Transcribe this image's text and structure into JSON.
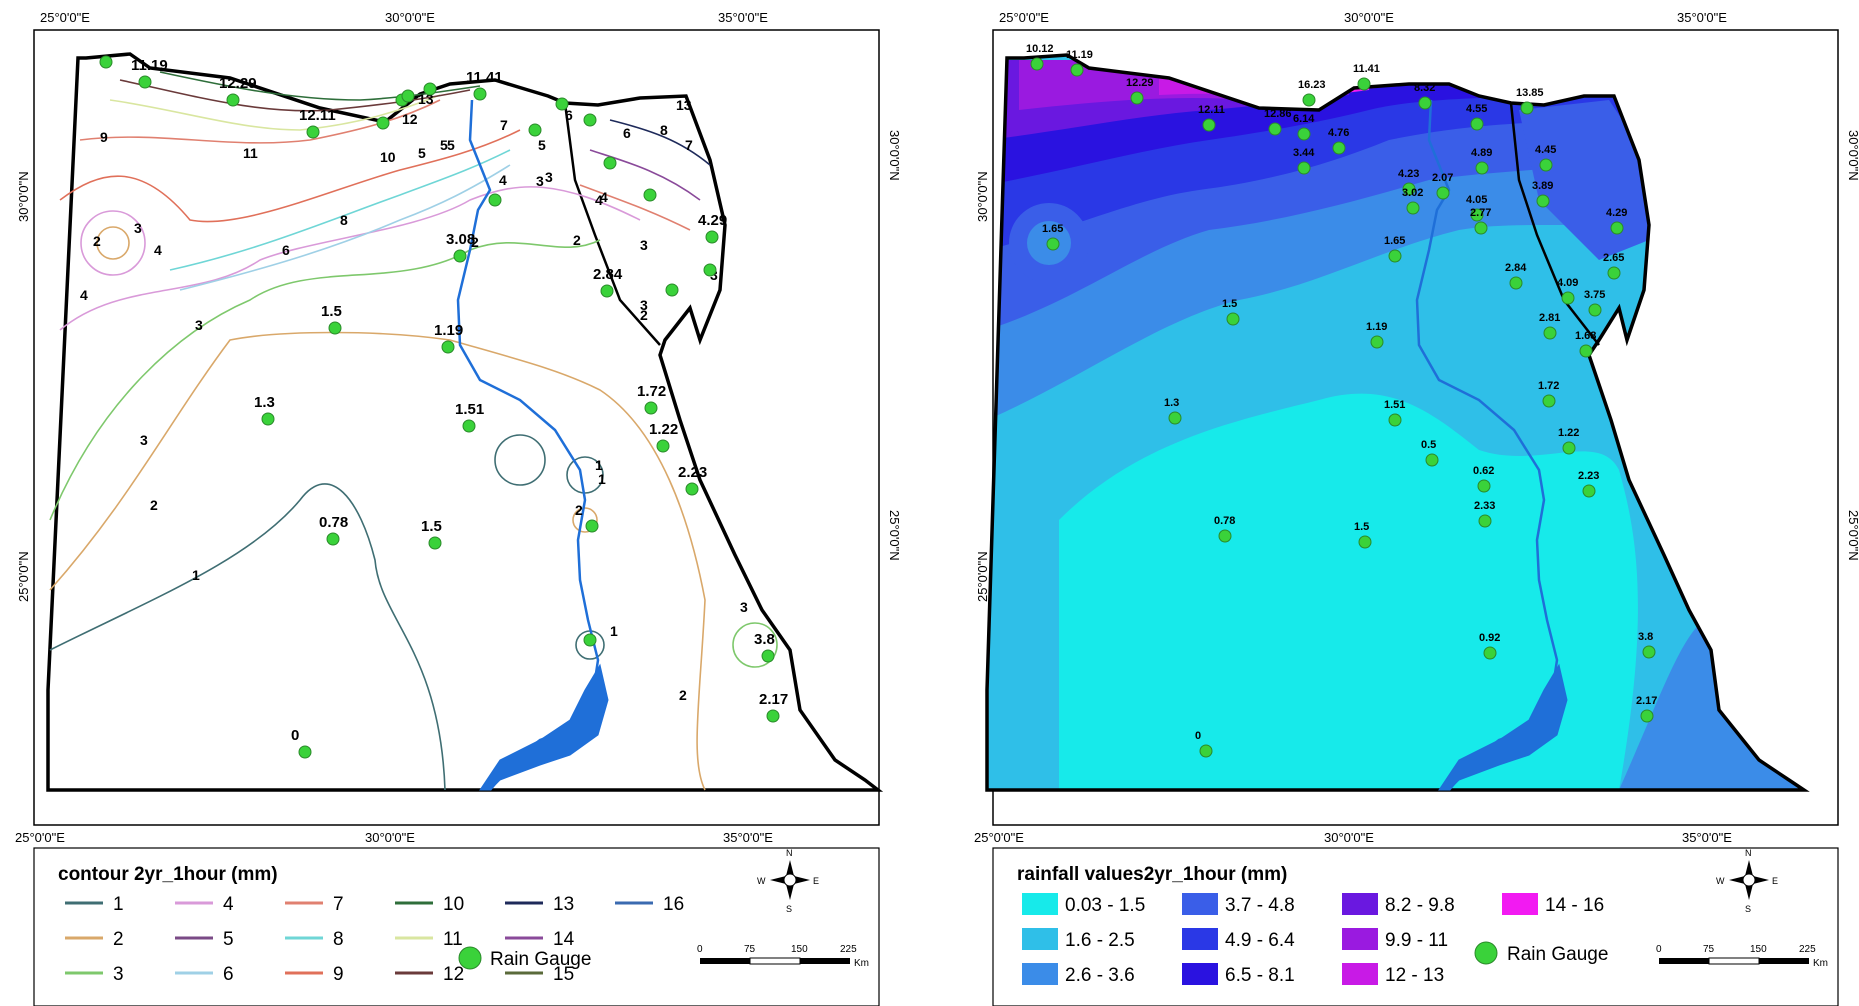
{
  "coords": {
    "lon_labels": [
      "25°0'0\"E",
      "30°0'0\"E",
      "35°0'0\"E"
    ],
    "lat_labels": [
      "30°0'0\"N",
      "25°0'0\"N"
    ]
  },
  "left_map": {
    "legend_title": "contour 2yr_1hour (mm)",
    "contour_items": [
      {
        "label": "1",
        "color": "#3f6e73"
      },
      {
        "label": "2",
        "color": "#d9a86a"
      },
      {
        "label": "3",
        "color": "#7ec86c"
      },
      {
        "label": "4",
        "color": "#d99ad9"
      },
      {
        "label": "5",
        "color": "#7a4a86"
      },
      {
        "label": "6",
        "color": "#9fd0e6"
      },
      {
        "label": "7",
        "color": "#e08070"
      },
      {
        "label": "8",
        "color": "#6fd6d6"
      },
      {
        "label": "9",
        "color": "#e0705a"
      },
      {
        "label": "10",
        "color": "#2e6e3a"
      },
      {
        "label": "11",
        "color": "#d9e6a0"
      },
      {
        "label": "12",
        "color": "#6a3a3a"
      },
      {
        "label": "13",
        "color": "#1e2a5a"
      },
      {
        "label": "14",
        "color": "#8a4a9a"
      },
      {
        "label": "15",
        "color": "#5a6a3a"
      },
      {
        "label": "16",
        "color": "#3a6ab0"
      }
    ],
    "gauge_legend": "Rain Gauge",
    "contour_labels": [
      "9",
      "11",
      "10",
      "12",
      "13",
      "5",
      "5",
      "7",
      "5",
      "6",
      "6",
      "8",
      "7",
      "13",
      "4",
      "3",
      "8",
      "6",
      "4",
      "2",
      "3",
      "4",
      "4",
      "3",
      "2",
      "1",
      "1",
      "1",
      "2",
      "2",
      "2",
      "3",
      "2",
      "5",
      "3",
      "3",
      "3",
      "1",
      "3",
      "4",
      "3",
      "2"
    ],
    "gauge_labels": [
      "11.19",
      "12.29",
      "12.11",
      "11.41",
      "3.08",
      "1.5",
      "1.19",
      "2.84",
      "4.29",
      "1.72",
      "1.22",
      "1.3",
      "1.51",
      "2.23",
      "0.78",
      "1.5",
      "3.8",
      "2.17",
      "0"
    ]
  },
  "right_map": {
    "legend_title": "rainfall values2yr_1hour (mm)",
    "class_items": [
      {
        "label": "0.03 - 1.5",
        "color": "#17eaea"
      },
      {
        "label": "1.6 - 2.5",
        "color": "#2fbfe8"
      },
      {
        "label": "2.6 - 3.6",
        "color": "#3b8ce8"
      },
      {
        "label": "3.7 - 4.8",
        "color": "#3a5ee8"
      },
      {
        "label": "4.9 - 6.4",
        "color": "#2a38e6"
      },
      {
        "label": "6.5 - 8.1",
        "color": "#2a12e0"
      },
      {
        "label": "8.2 - 9.8",
        "color": "#6a18e0"
      },
      {
        "label": "9.9 - 11",
        "color": "#9a1ae0"
      },
      {
        "label": "12 - 13",
        "color": "#c81ae6"
      },
      {
        "label": "14 - 16",
        "color": "#f21af2"
      }
    ],
    "gauge_legend": "Rain Gauge",
    "gauge_labels": [
      "10.12",
      "11.19",
      "12.29",
      "12.11",
      "12.86",
      "16.23",
      "11.41",
      "8.32",
      "13.85",
      "6.14",
      "4.76",
      "4.55",
      "3.44",
      "4.89",
      "4.45",
      "4.23",
      "2.07",
      "3.02",
      "4.05",
      "2.77",
      "3.89",
      "4.29",
      "1.65",
      "1.65",
      "2.65",
      "2.84",
      "4.09",
      "3.75",
      "1.5",
      "1.19",
      "2.81",
      "1.68",
      "1.72",
      "1.3",
      "1.51",
      "1.22",
      "0.5",
      "0.62",
      "2.23",
      "0.78",
      "1.5",
      "2.33",
      "3.8",
      "0.92",
      "2.17",
      "0"
    ]
  },
  "north_arrow": {
    "n": "N",
    "s": "S",
    "e": "E",
    "w": "W"
  },
  "scale_bar": {
    "ticks": [
      "0",
      "75",
      "150",
      "225"
    ],
    "unit": "Km"
  }
}
